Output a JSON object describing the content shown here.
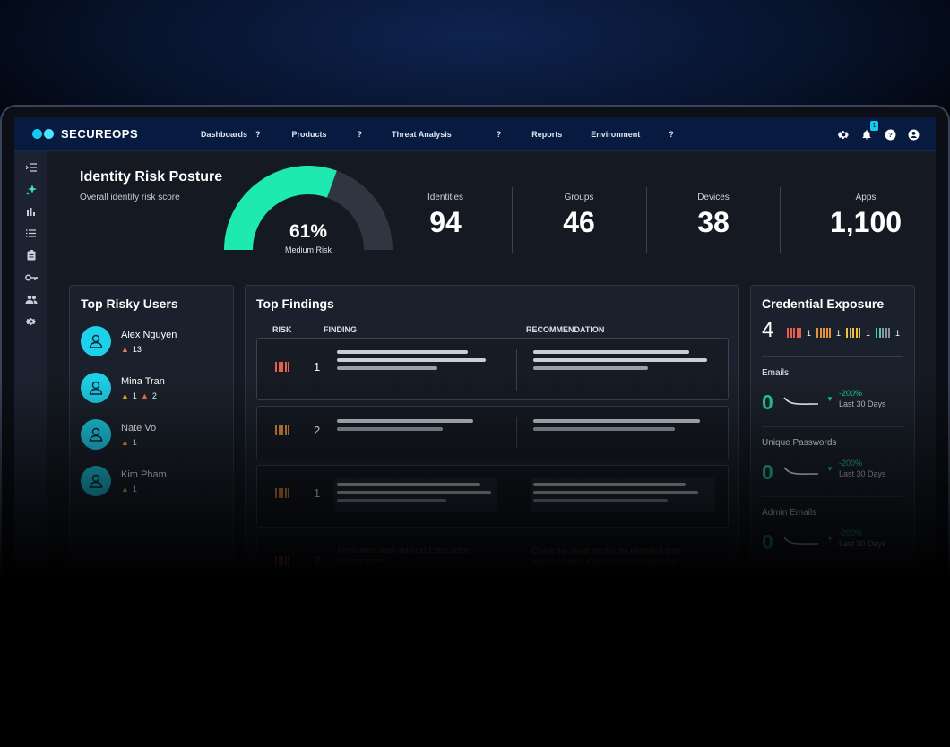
{
  "app": {
    "name": "SECUREOPS"
  },
  "nav": {
    "items": [
      {
        "label": "Dashboards",
        "help": "?"
      },
      {
        "label": "Products",
        "help": "?"
      },
      {
        "label": "Threat Analysis",
        "help": "?"
      },
      {
        "label": "Reports",
        "help": ""
      },
      {
        "label": "Environment",
        "help": "?"
      }
    ]
  },
  "header_icons": {
    "notifications_count": "1",
    "help": "?"
  },
  "sidebar": {
    "icons": [
      "collapse-menu-icon",
      "sparkle-icon",
      "bar-chart-icon",
      "list-icon",
      "clipboard-icon",
      "key-icon",
      "users-icon",
      "settings-icon"
    ]
  },
  "posture": {
    "title": "Identity Risk Posture",
    "subtitle": "Overall identity risk score",
    "percent_value": 61,
    "percent_label": "61%",
    "risk_label": "Medium Risk",
    "colors": {
      "fill": "#1de9b0",
      "track": "#2f3642"
    }
  },
  "stats": [
    {
      "label": "Identities",
      "value": "94"
    },
    {
      "label": "Groups",
      "value": "46"
    },
    {
      "label": "Devices",
      "value": "38"
    },
    {
      "label": "Apps",
      "value": "1,100"
    }
  ],
  "top_risky_users": {
    "title": "Top Risky Users",
    "users": [
      {
        "name": "Alex Nguyen",
        "badges": [
          {
            "severity": "high",
            "count": "13"
          }
        ]
      },
      {
        "name": "Mina Tran",
        "badges": [
          {
            "severity": "medium",
            "count": "1"
          },
          {
            "severity": "high",
            "count": "2"
          }
        ]
      },
      {
        "name": "Nate Vo",
        "badges": [
          {
            "severity": "medium",
            "count": "1"
          }
        ]
      },
      {
        "name": "Kim Pham",
        "badges": [
          {
            "severity": "medium",
            "count": "1"
          }
        ]
      }
    ]
  },
  "top_findings": {
    "title": "Top Findings",
    "columns": {
      "risk": "RISK",
      "finding": "FINDING",
      "recommendation": "RECOMMENDATION"
    },
    "rows": [
      {
        "risk": "1",
        "risk_level": "high"
      },
      {
        "risk": "2",
        "risk_level": "medium"
      },
      {
        "risk": "1",
        "risk_level": "medium"
      },
      {
        "risk": "2",
        "risk_level": "high",
        "finding": "Application shall not hold Entra admin",
        "finding_line2": "role via more",
        "recommendation": "Check the result tab for the identified tolet,",
        "recommendation_line2": "and determine if they are needing for the"
      }
    ],
    "colors": {
      "high": "#e8604c",
      "medium": "#e8913c"
    }
  },
  "credential_exposure": {
    "title": "Credential Exposure",
    "total": "4",
    "chips": [
      {
        "count": "1",
        "colors": [
          "#e8604c",
          "#e8604c",
          "#e8604c",
          "#e8604c",
          "#e8604c"
        ]
      },
      {
        "count": "1",
        "colors": [
          "#e8913c",
          "#e8913c",
          "#e8913c",
          "#e8913c",
          "#e8913c"
        ]
      },
      {
        "count": "1",
        "colors": [
          "#f0c040",
          "#f0c040",
          "#f0c040",
          "#f0c040",
          "#f0c040"
        ]
      },
      {
        "count": "1",
        "colors": [
          "#4ad0b0",
          "#4ad0b0",
          "#8a93a0",
          "#8a93a0",
          "#8a93a0"
        ]
      }
    ],
    "metrics": [
      {
        "label": "Emails",
        "value": "0",
        "change": "-200%",
        "period": "Last 30 Days"
      },
      {
        "label": "Unique Passwords",
        "value": "0",
        "change": "-200%",
        "period": "Last 30 Days"
      },
      {
        "label": "Admin Emails",
        "value": "0",
        "change": "-200%",
        "period": "Last 30 Days"
      }
    ]
  }
}
